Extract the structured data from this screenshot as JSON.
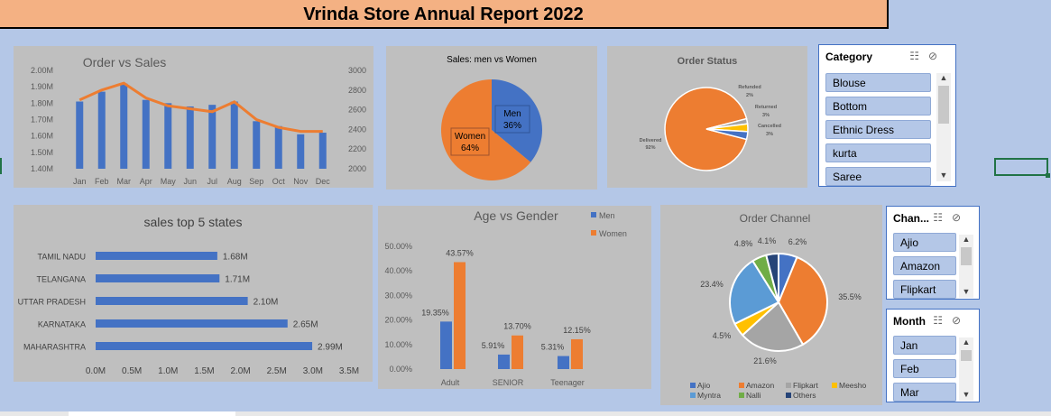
{
  "title": "Vrinda Store Annual Report 2022",
  "colors": {
    "blue": "#4472c4",
    "orange": "#ed7d31",
    "gray": "#a5a5a5",
    "yellow": "#ffc000",
    "lightblue": "#5b9bd5",
    "green": "#70ad47",
    "navy": "#264478",
    "panel": "#bfbfbf",
    "background": "#b4c7e7"
  },
  "charts": {
    "order_vs_sales": {
      "type": "bar+line",
      "title": "Order vs Sales",
      "categories": [
        "Jan",
        "Feb",
        "Mar",
        "Apr",
        "May",
        "Jun",
        "Jul",
        "Aug",
        "Sep",
        "Oct",
        "Nov",
        "Dec"
      ],
      "left_ticks": [
        "2.00M",
        "1.90M",
        "1.80M",
        "1.70M",
        "1.60M",
        "1.50M",
        "1.40M"
      ],
      "right_ticks": [
        "3000",
        "2800",
        "2600",
        "2400",
        "2200",
        "2000"
      ],
      "sales_values": [
        1.81,
        1.87,
        1.92,
        1.82,
        1.8,
        1.78,
        1.79,
        1.81,
        1.69,
        1.66,
        1.61,
        1.62
      ],
      "order_values": [
        2700,
        2800,
        2870,
        2720,
        2640,
        2610,
        2580,
        2680,
        2500,
        2420,
        2380,
        2380
      ],
      "ylim_left": [
        1.4,
        2.0
      ],
      "ylim_right": [
        2000,
        3000
      ]
    },
    "men_vs_women": {
      "type": "pie",
      "title": "Sales: men vs Women",
      "labels": [
        "Men",
        "Women"
      ],
      "values": [
        36,
        64
      ],
      "pct_labels": [
        "36%",
        "64%"
      ]
    },
    "order_status": {
      "type": "pie",
      "title": "Order Status",
      "labels": [
        "Delivered",
        "Refunded",
        "Returned",
        "Cancelled"
      ],
      "values": [
        92,
        2,
        3,
        3
      ],
      "pct_labels": [
        "92%",
        "2%",
        "3%",
        "3%"
      ]
    },
    "top_states": {
      "type": "bar",
      "title": "sales top 5 states",
      "categories": [
        "TAMIL NADU",
        "TELANGANA",
        "UTTAR PRADESH",
        "KARNATAKA",
        "MAHARASHTRA"
      ],
      "values": [
        1.68,
        1.71,
        2.1,
        2.65,
        2.99
      ],
      "value_labels": [
        "1.68M",
        "1.71M",
        "2.10M",
        "2.65M",
        "2.99M"
      ],
      "ticks": [
        "0.0M",
        "0.5M",
        "1.0M",
        "1.5M",
        "2.0M",
        "2.5M",
        "3.0M",
        "3.5M"
      ],
      "xlim": [
        0,
        3.5
      ]
    },
    "age_vs_gender": {
      "type": "bar",
      "title": "Age vs Gender",
      "categories": [
        "Adult",
        "SENIOR",
        "Teenager"
      ],
      "series": [
        {
          "name": "Men",
          "values": [
            19.35,
            5.91,
            5.31
          ],
          "labels": [
            "19.35%",
            "5.91%",
            "5.31%"
          ]
        },
        {
          "name": "Women",
          "values": [
            43.57,
            13.7,
            12.15
          ],
          "labels": [
            "43.57%",
            "13.70%",
            "12.15%"
          ]
        }
      ],
      "ticks": [
        "50.00%",
        "40.00%",
        "30.00%",
        "20.00%",
        "10.00%",
        "0.00%"
      ],
      "ylim": [
        0,
        50
      ]
    },
    "order_channel": {
      "type": "pie",
      "title": "Order Channel",
      "labels": [
        "Ajio",
        "Amazon",
        "Flipkart",
        "Meesho",
        "Myntra",
        "Nalli",
        "Others"
      ],
      "values": [
        6.2,
        35.5,
        21.6,
        4.5,
        23.4,
        4.8,
        4.1
      ],
      "pct_labels": [
        "6.2%",
        "35.5%",
        "21.6%",
        "4.5%",
        "23.4%",
        "4.8%",
        "4.1%"
      ]
    }
  },
  "slicers": {
    "category": {
      "title": "Category",
      "items": [
        "Blouse",
        "Bottom",
        "Ethnic Dress",
        "kurta",
        "Saree"
      ]
    },
    "channel": {
      "title": "Chan...",
      "items": [
        "Ajio",
        "Amazon",
        "Flipkart"
      ]
    },
    "month": {
      "title": "Month",
      "items": [
        "Jan",
        "Feb",
        "Mar"
      ]
    }
  }
}
